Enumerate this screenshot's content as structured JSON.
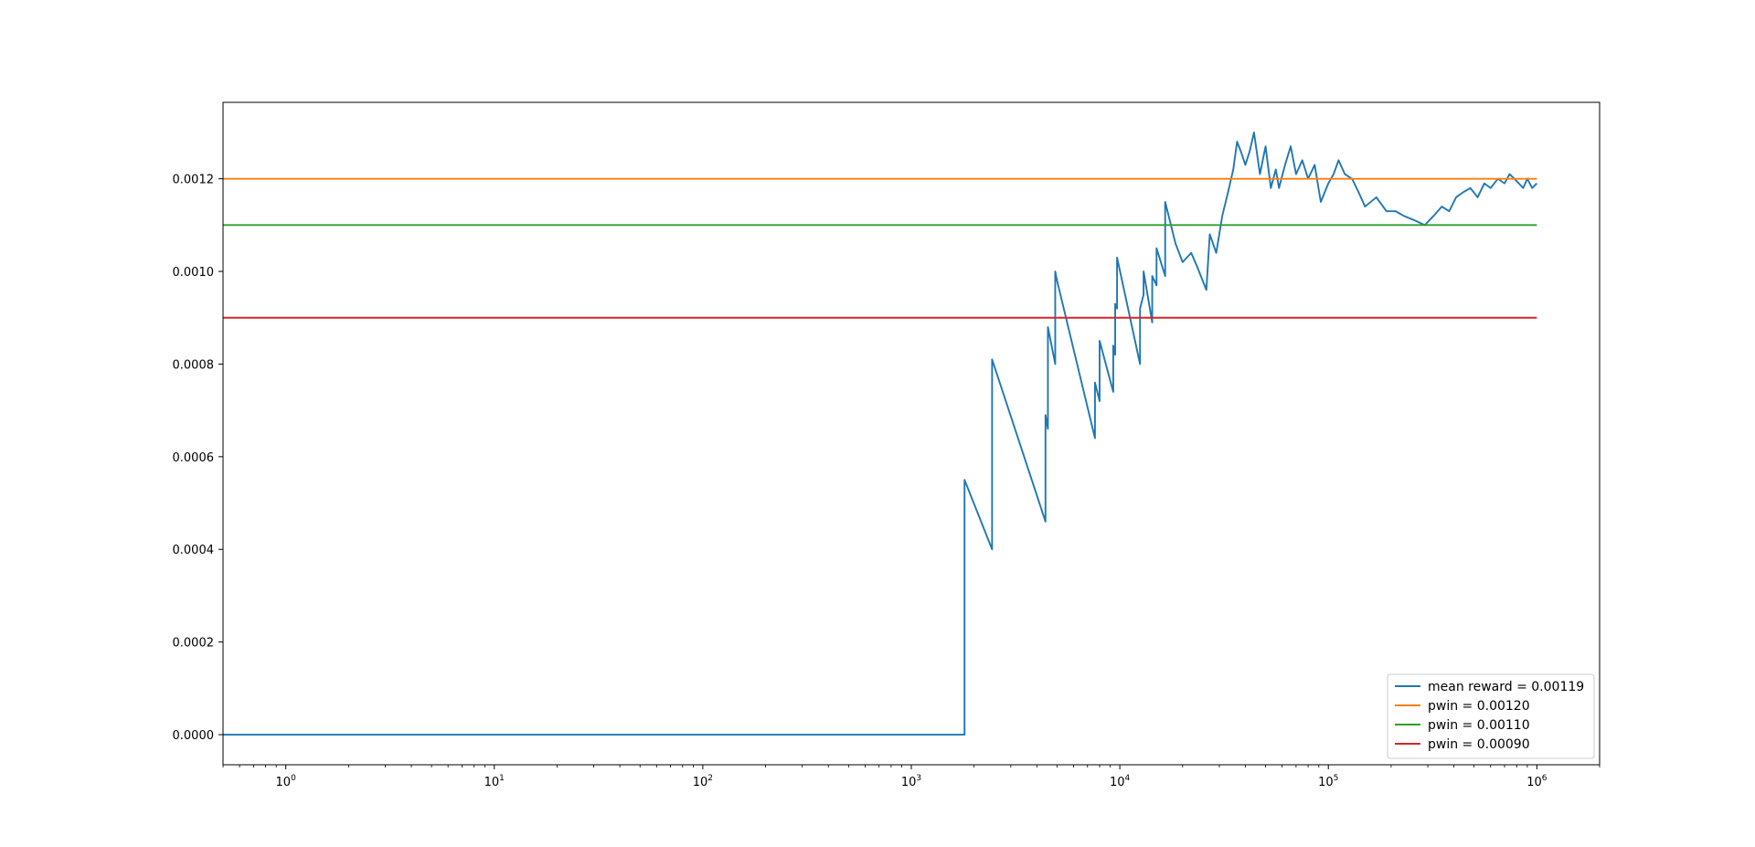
{
  "chart_data": {
    "type": "line",
    "title": "",
    "xlabel": "",
    "ylabel": "",
    "x_scale": "log",
    "xlim": [
      0.5,
      2000000
    ],
    "ylim": [
      -6.5e-05,
      0.001365
    ],
    "grid": false,
    "legend_position": "lower-right",
    "x_ticks": [
      {
        "base": "10",
        "exp": "0",
        "value": 1
      },
      {
        "base": "10",
        "exp": "1",
        "value": 10
      },
      {
        "base": "10",
        "exp": "2",
        "value": 100
      },
      {
        "base": "10",
        "exp": "3",
        "value": 1000
      },
      {
        "base": "10",
        "exp": "4",
        "value": 10000
      },
      {
        "base": "10",
        "exp": "5",
        "value": 100000
      },
      {
        "base": "10",
        "exp": "6",
        "value": 1000000
      }
    ],
    "y_ticks": [
      {
        "label": "0.0000",
        "value": 0
      },
      {
        "label": "0.0002",
        "value": 0.0002
      },
      {
        "label": "0.0004",
        "value": 0.0004
      },
      {
        "label": "0.0006",
        "value": 0.0006
      },
      {
        "label": "0.0008",
        "value": 0.0008
      },
      {
        "label": "0.0010",
        "value": 0.001
      },
      {
        "label": "0.0012",
        "value": 0.0012
      }
    ],
    "series": [
      {
        "name": "mean reward = 0.00119",
        "color": "#1f77b4",
        "x": [
          0.5,
          1800,
          1800,
          2440,
          2440,
          4400,
          4400,
          4520,
          4520,
          4900,
          4900,
          5000,
          5000,
          7600,
          7600,
          8000,
          8000,
          9300,
          9300,
          9500,
          9500,
          9700,
          9700,
          12500,
          12500,
          13000,
          13000,
          14300,
          14300,
          15000,
          15000,
          16500,
          16500,
          18500,
          20000,
          22000,
          23500,
          26000,
          27000,
          29000,
          31000,
          33000,
          35000,
          36500,
          38000,
          40000,
          42000,
          44000,
          47000,
          50000,
          53000,
          56000,
          58000,
          62000,
          66000,
          70000,
          75000,
          80000,
          86000,
          92000,
          100000,
          106000,
          112000,
          120000,
          130000,
          140000,
          150000,
          170000,
          190000,
          210000,
          230000,
          260000,
          290000,
          320000,
          350000,
          380000,
          410000,
          440000,
          480000,
          520000,
          560000,
          600000,
          650000,
          700000,
          740000,
          780000,
          820000,
          860000,
          900000,
          950000,
          1000000
        ],
        "y": [
          0,
          0,
          0.00055,
          0.0004,
          0.00081,
          0.00046,
          0.00069,
          0.00066,
          0.00088,
          0.0008,
          0.001,
          0.00098,
          0.00098,
          0.00064,
          0.00076,
          0.00072,
          0.00085,
          0.00074,
          0.00084,
          0.00082,
          0.00093,
          0.00092,
          0.00103,
          0.0008,
          0.00092,
          0.00095,
          0.001,
          0.00089,
          0.00099,
          0.00097,
          0.00105,
          0.00099,
          0.00115,
          0.00106,
          0.00102,
          0.00104,
          0.00101,
          0.00096,
          0.00108,
          0.00104,
          0.00112,
          0.00117,
          0.00122,
          0.00128,
          0.00126,
          0.00123,
          0.00126,
          0.0013,
          0.00121,
          0.00127,
          0.00118,
          0.00122,
          0.00118,
          0.00123,
          0.00127,
          0.00121,
          0.00124,
          0.0012,
          0.00123,
          0.00115,
          0.00119,
          0.00121,
          0.00124,
          0.00121,
          0.0012,
          0.00117,
          0.00114,
          0.00116,
          0.00113,
          0.00113,
          0.00112,
          0.00111,
          0.0011,
          0.00112,
          0.00114,
          0.00113,
          0.00116,
          0.00117,
          0.00118,
          0.00116,
          0.00119,
          0.00118,
          0.0012,
          0.00119,
          0.00121,
          0.0012,
          0.00119,
          0.00118,
          0.0012,
          0.00118,
          0.00119
        ]
      },
      {
        "name": "pwin = 0.00120",
        "color": "#ff7f0e",
        "x": [
          0.5,
          1000000
        ],
        "y": [
          0.0012,
          0.0012
        ]
      },
      {
        "name": "pwin = 0.00110",
        "color": "#2ca02c",
        "x": [
          0.5,
          1000000
        ],
        "y": [
          0.0011,
          0.0011
        ]
      },
      {
        "name": "pwin = 0.00090",
        "color": "#d62728",
        "x": [
          0.5,
          1000000
        ],
        "y": [
          0.0009,
          0.0009
        ]
      }
    ]
  }
}
